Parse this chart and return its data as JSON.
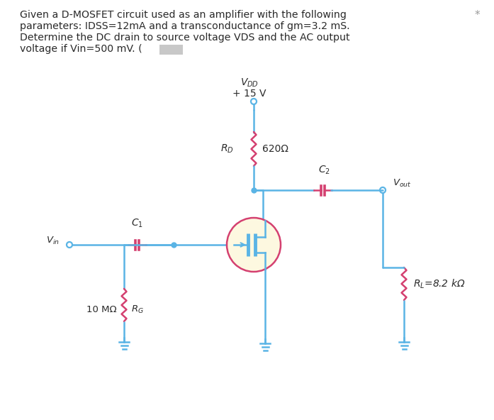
{
  "bg_color": "#ffffff",
  "line_color": "#5ab4e5",
  "component_color": "#d44070",
  "text_color": "#2a2a2a",
  "mosfet_fill": "#fdf8e0",
  "mosfet_circle_color": "#d44070",
  "vdd_label": "$V_{DD}$",
  "vdd_value": "+ 15 V",
  "rd_label": "$R_D$",
  "rd_value": "620Ω",
  "c2_label": "$C_2$",
  "vout_label": "$V_{out}$",
  "c1_label": "$C_1$",
  "vin_label": "$V_{in}$",
  "rg_label": "$R_G$",
  "rg_value": "10 MΩ",
  "rl_label": "$R_L$=8.2 kΩ",
  "asterisk": "*",
  "problem_line1": "Given a D-MOSFET circuit used as an amplifier with the following",
  "problem_line2": "parameters: IDSS=12mA and a transconductance of gm=3.2 mS.",
  "problem_line3": "Determine the DC drain to source voltage VDS and the AC output",
  "problem_line4": "voltage if Vin=500 mV. ("
}
